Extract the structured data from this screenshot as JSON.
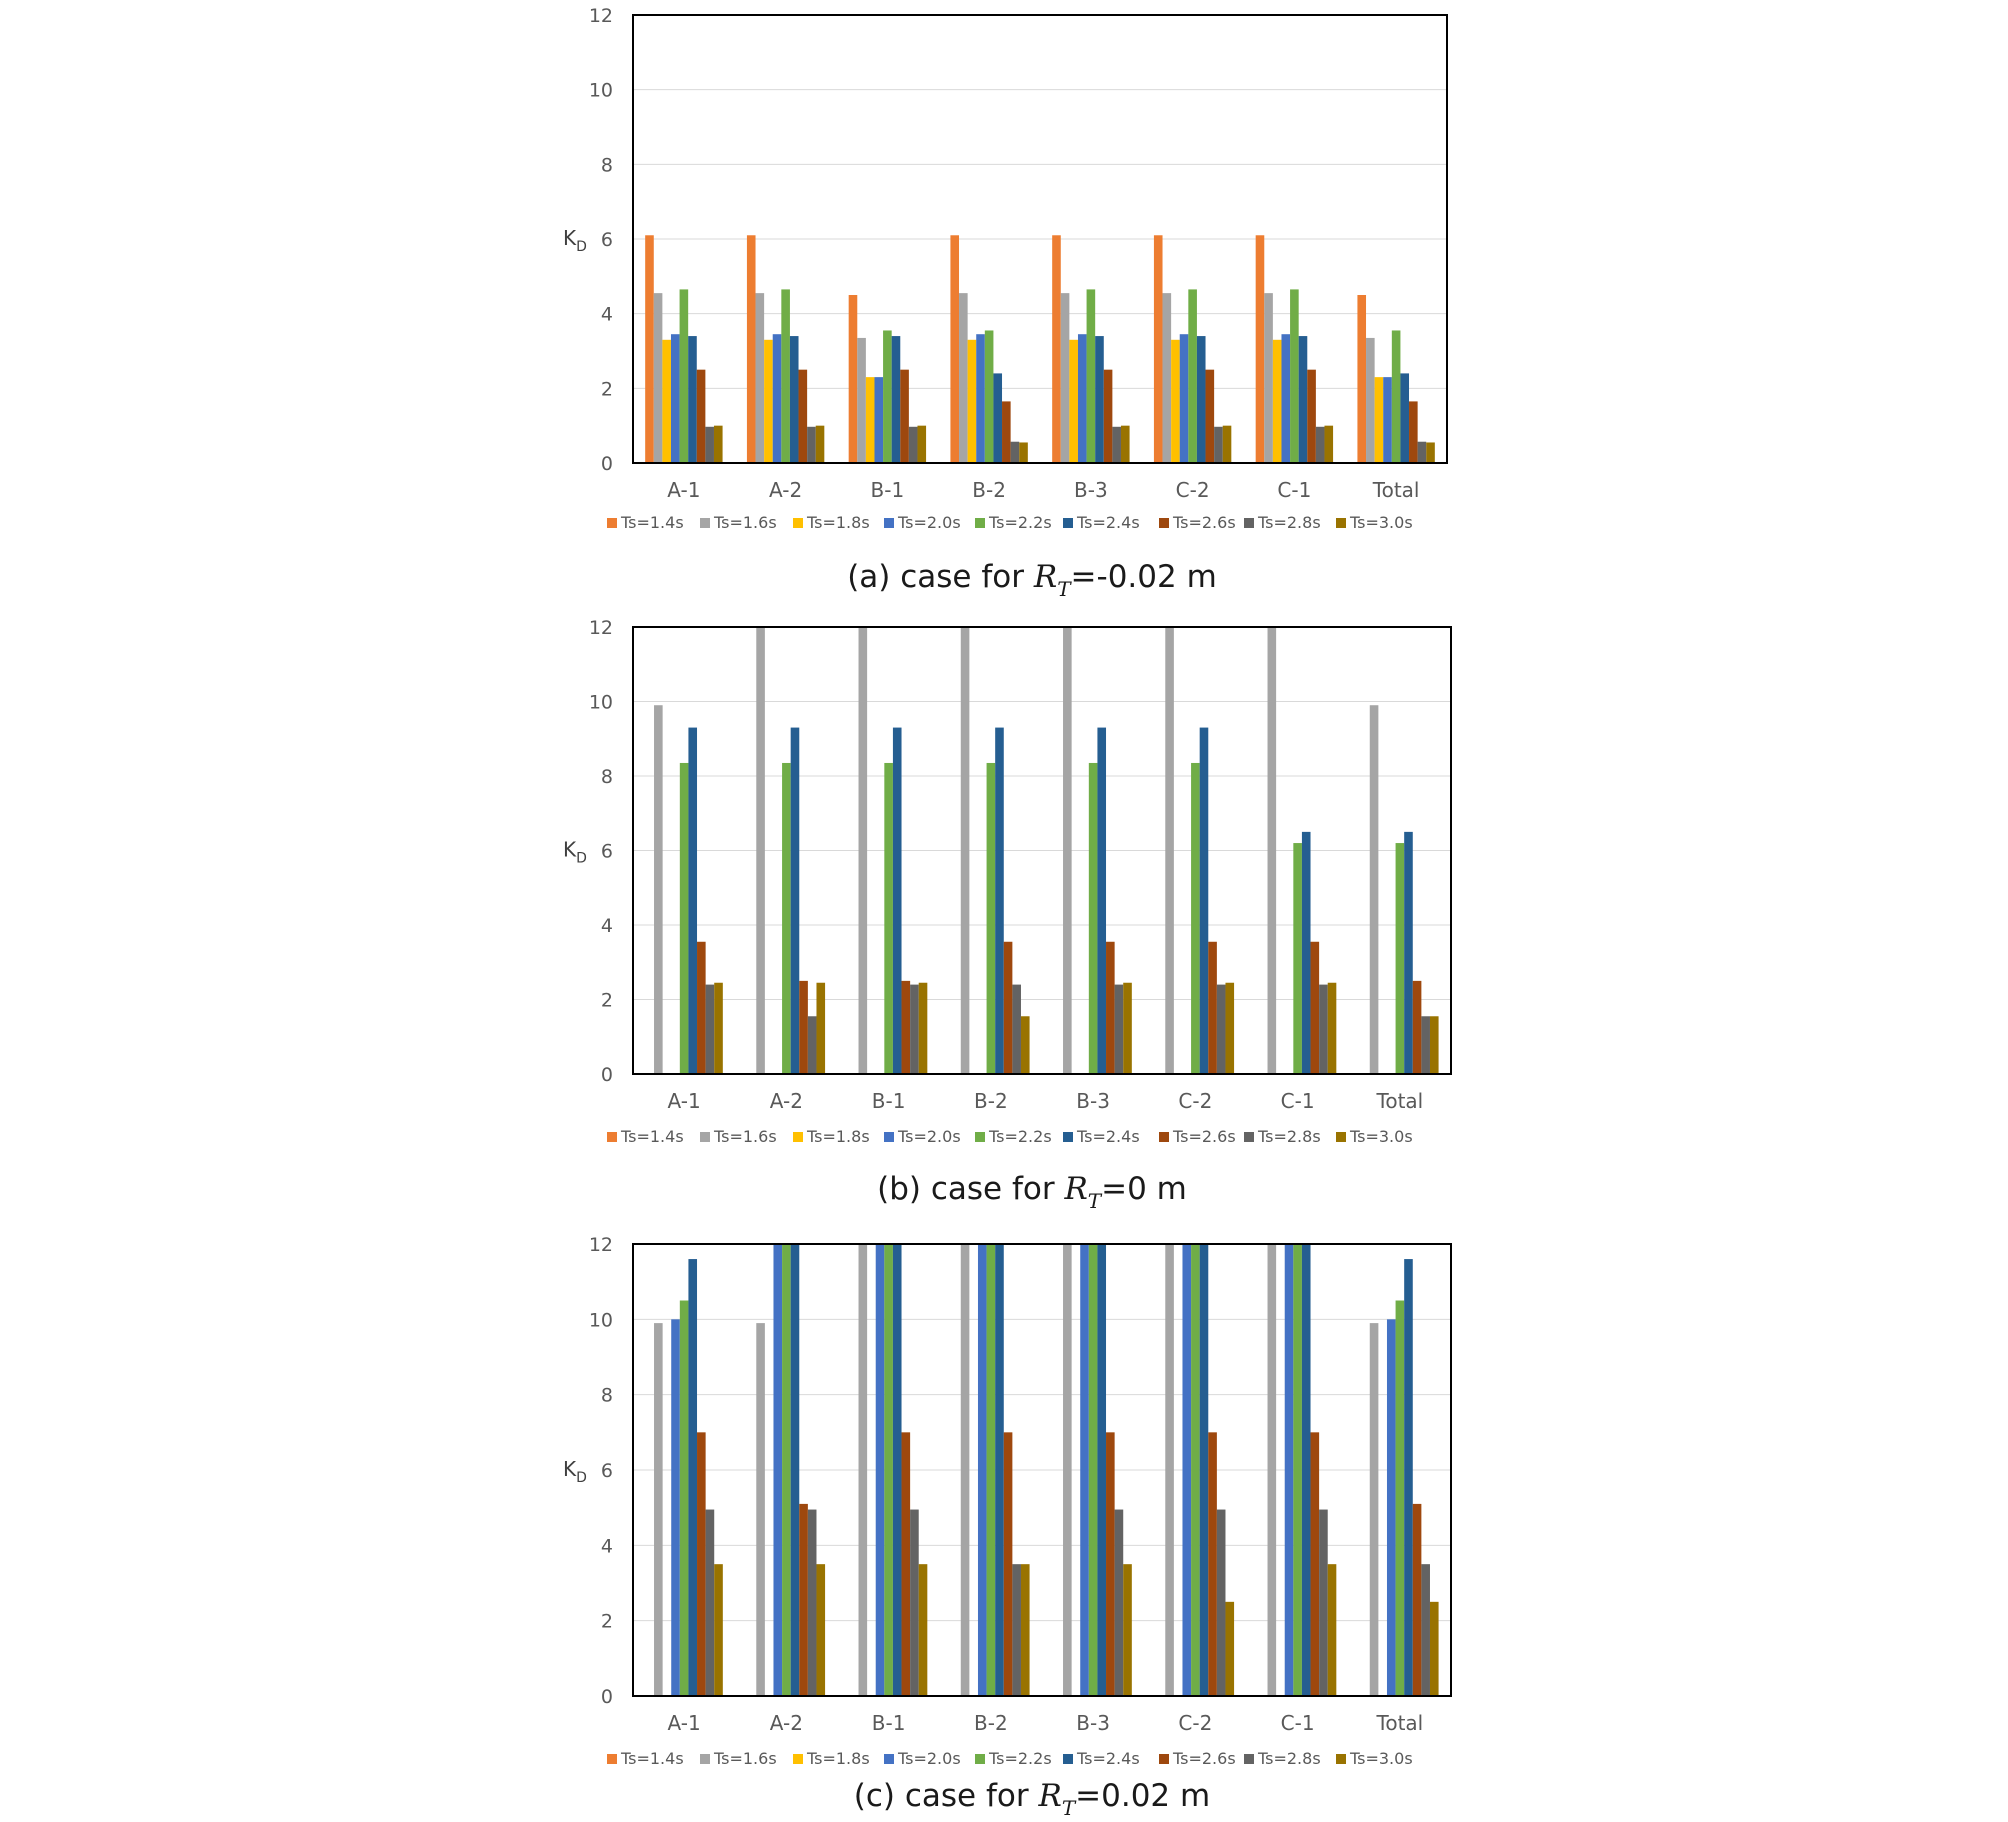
{
  "y_label": {
    "main": "K",
    "sub": "D"
  },
  "legend": [
    {
      "label": "Ts=1.4s",
      "color": "#ED7D31"
    },
    {
      "label": "Ts=1.6s",
      "color": "#A5A5A5"
    },
    {
      "label": "Ts=1.8s",
      "color": "#FFC000"
    },
    {
      "label": "Ts=2.0s",
      "color": "#4472C4"
    },
    {
      "label": "Ts=2.2s",
      "color": "#70AD47"
    },
    {
      "label": "Ts=2.4s",
      "color": "#255E91"
    },
    {
      "label": "Ts=2.6s",
      "color": "#9E480E"
    },
    {
      "label": "Ts=2.8s",
      "color": "#636363"
    },
    {
      "label": "Ts=3.0s",
      "color": "#997300"
    }
  ],
  "chart_data": [
    {
      "type": "bar",
      "caption": {
        "prefix": "(a) case for ",
        "math": "R",
        "sub": "T",
        "suffix": "=-0.02 m"
      },
      "categories": [
        "A-1",
        "A-2",
        "B-1",
        "B-2",
        "B-3",
        "C-2",
        "C-1",
        "Total"
      ],
      "ylim": [
        0,
        12
      ],
      "yticks": [
        "0",
        "2",
        "4",
        "6",
        "8",
        "10",
        "12"
      ],
      "grid": true,
      "legend_position": "bottom",
      "series": [
        {
          "name": "Ts=1.4s",
          "values": [
            6.1,
            6.1,
            4.5,
            6.1,
            6.1,
            6.1,
            6.1,
            4.5
          ]
        },
        {
          "name": "Ts=1.6s",
          "values": [
            4.55,
            4.55,
            3.35,
            4.55,
            4.55,
            4.55,
            4.55,
            3.35
          ]
        },
        {
          "name": "Ts=1.8s",
          "values": [
            3.3,
            3.3,
            2.3,
            3.3,
            3.3,
            3.3,
            3.3,
            2.3
          ]
        },
        {
          "name": "Ts=2.0s",
          "values": [
            3.45,
            3.45,
            2.3,
            3.45,
            3.45,
            3.45,
            3.45,
            2.3
          ]
        },
        {
          "name": "Ts=2.2s",
          "values": [
            4.65,
            4.65,
            3.55,
            3.55,
            4.65,
            4.65,
            4.65,
            3.55
          ]
        },
        {
          "name": "Ts=2.4s",
          "values": [
            3.4,
            3.4,
            3.4,
            2.4,
            3.4,
            3.4,
            3.4,
            2.4
          ]
        },
        {
          "name": "Ts=2.6s",
          "values": [
            2.5,
            2.5,
            2.5,
            1.65,
            2.5,
            2.5,
            2.5,
            1.65
          ]
        },
        {
          "name": "Ts=2.8s",
          "values": [
            0.97,
            0.97,
            0.97,
            0.57,
            0.97,
            0.97,
            0.97,
            0.57
          ]
        },
        {
          "name": "Ts=3.0s",
          "values": [
            1.0,
            1.0,
            1.0,
            0.55,
            1.0,
            1.0,
            1.0,
            0.55
          ]
        }
      ]
    },
    {
      "type": "bar",
      "caption": {
        "prefix": "(b) case for ",
        "math": "R",
        "sub": "T",
        "suffix": "=0 m"
      },
      "categories": [
        "A-1",
        "A-2",
        "B-1",
        "B-2",
        "B-3",
        "C-2",
        "C-1",
        "Total"
      ],
      "ylim": [
        0,
        12
      ],
      "yticks": [
        "0",
        "2",
        "4",
        "6",
        "8",
        "10",
        "12"
      ],
      "grid": true,
      "legend_position": "bottom",
      "series": [
        {
          "name": "Ts=1.4s",
          "values": [
            0,
            0,
            0,
            0,
            0,
            0,
            0,
            0
          ]
        },
        {
          "name": "Ts=1.6s",
          "values": [
            9.9,
            12,
            12,
            12,
            12,
            12,
            12,
            9.9
          ]
        },
        {
          "name": "Ts=1.8s",
          "values": [
            0,
            0,
            0,
            0,
            0,
            0,
            0,
            0
          ]
        },
        {
          "name": "Ts=2.0s",
          "values": [
            0,
            0,
            0,
            0,
            0,
            0,
            0,
            0
          ]
        },
        {
          "name": "Ts=2.2s",
          "values": [
            8.35,
            8.35,
            8.35,
            8.35,
            8.35,
            8.35,
            6.2,
            6.2
          ]
        },
        {
          "name": "Ts=2.4s",
          "values": [
            9.3,
            9.3,
            9.3,
            9.3,
            9.3,
            9.3,
            6.5,
            6.5
          ]
        },
        {
          "name": "Ts=2.6s",
          "values": [
            3.55,
            2.5,
            2.5,
            3.55,
            3.55,
            3.55,
            3.55,
            2.5
          ]
        },
        {
          "name": "Ts=2.8s",
          "values": [
            2.4,
            1.55,
            2.4,
            2.4,
            2.4,
            2.4,
            2.4,
            1.55
          ]
        },
        {
          "name": "Ts=3.0s",
          "values": [
            2.45,
            2.45,
            2.45,
            1.55,
            2.45,
            2.45,
            2.45,
            1.55
          ]
        }
      ]
    },
    {
      "type": "bar",
      "caption": {
        "prefix": "(c) case for ",
        "math": "R",
        "sub": "T",
        "suffix": "=0.02 m"
      },
      "categories": [
        "A-1",
        "A-2",
        "B-1",
        "B-2",
        "B-3",
        "C-2",
        "C-1",
        "Total"
      ],
      "ylim": [
        0,
        12
      ],
      "yticks": [
        "0",
        "2",
        "4",
        "6",
        "8",
        "10",
        "12"
      ],
      "grid": true,
      "legend_position": "bottom",
      "series": [
        {
          "name": "Ts=1.4s",
          "values": [
            0,
            0,
            0,
            0,
            0,
            0,
            0,
            0
          ]
        },
        {
          "name": "Ts=1.6s",
          "values": [
            9.9,
            9.9,
            12,
            12,
            12,
            12,
            12,
            9.9
          ]
        },
        {
          "name": "Ts=1.8s",
          "values": [
            0,
            0,
            0,
            0,
            0,
            0,
            0,
            0
          ]
        },
        {
          "name": "Ts=2.0s",
          "values": [
            10.0,
            12,
            12,
            12,
            12,
            12,
            12,
            10.0
          ]
        },
        {
          "name": "Ts=2.2s",
          "values": [
            10.5,
            12,
            12,
            12,
            12,
            12,
            12,
            10.5
          ]
        },
        {
          "name": "Ts=2.4s",
          "values": [
            11.6,
            12,
            12,
            12,
            12,
            12,
            12,
            11.6
          ]
        },
        {
          "name": "Ts=2.6s",
          "values": [
            7.0,
            5.1,
            7.0,
            7.0,
            7.0,
            7.0,
            7.0,
            5.1
          ]
        },
        {
          "name": "Ts=2.8s",
          "values": [
            4.95,
            4.95,
            4.95,
            3.5,
            4.95,
            4.95,
            4.95,
            3.5
          ]
        },
        {
          "name": "Ts=3.0s",
          "values": [
            3.5,
            3.5,
            3.5,
            3.5,
            3.5,
            2.5,
            3.5,
            2.5
          ]
        }
      ]
    }
  ]
}
